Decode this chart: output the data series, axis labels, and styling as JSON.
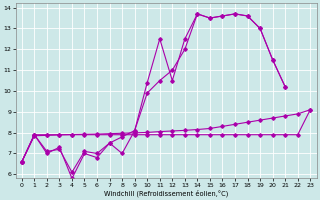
{
  "bg_color": "#cde8e8",
  "line_color": "#aa00aa",
  "xlabel": "Windchill (Refroidissement éolien,°C)",
  "xlim": [
    -0.5,
    23.5
  ],
  "ylim": [
    5.8,
    14.2
  ],
  "xticks": [
    0,
    1,
    2,
    3,
    4,
    5,
    6,
    7,
    8,
    9,
    10,
    11,
    12,
    13,
    14,
    15,
    16,
    17,
    18,
    19,
    20,
    21,
    22,
    23
  ],
  "yticks": [
    6,
    7,
    8,
    9,
    10,
    11,
    12,
    13,
    14
  ],
  "s1x": [
    0,
    1,
    2,
    3,
    4,
    5,
    6,
    7,
    8,
    9,
    10,
    11,
    12,
    13,
    14,
    15,
    16,
    17,
    18,
    19,
    20,
    21
  ],
  "s1y": [
    6.6,
    7.9,
    7.0,
    7.3,
    5.8,
    7.0,
    6.8,
    7.5,
    7.0,
    8.1,
    10.4,
    12.5,
    10.5,
    12.5,
    13.7,
    13.5,
    13.6,
    13.7,
    13.6,
    13.0,
    11.5,
    10.2
  ],
  "s2x": [
    0,
    1,
    2,
    3,
    4,
    5,
    6,
    7,
    8,
    9,
    10,
    11,
    12,
    13,
    14,
    15,
    16,
    17,
    18,
    19,
    20,
    21
  ],
  "s2y": [
    6.6,
    7.9,
    7.1,
    7.2,
    6.1,
    7.1,
    7.0,
    7.5,
    7.8,
    8.1,
    9.9,
    10.5,
    11.0,
    12.0,
    13.7,
    13.5,
    13.6,
    13.7,
    13.6,
    13.0,
    11.5,
    10.2
  ],
  "s3x": [
    0,
    1,
    2,
    3,
    4,
    5,
    6,
    7,
    8,
    9,
    10,
    11,
    12,
    13,
    14,
    15,
    16,
    17,
    18,
    19,
    20,
    21,
    22,
    23
  ],
  "s3y": [
    6.6,
    7.85,
    7.87,
    7.89,
    7.91,
    7.92,
    7.93,
    7.95,
    7.97,
    7.99,
    8.01,
    8.05,
    8.08,
    8.11,
    8.15,
    8.2,
    8.3,
    8.4,
    8.5,
    8.6,
    8.7,
    8.8,
    8.9,
    9.1
  ],
  "s4x": [
    0,
    1,
    2,
    3,
    4,
    5,
    6,
    7,
    8,
    9,
    10,
    11,
    12,
    13,
    14,
    15,
    16,
    17,
    18,
    19,
    20,
    21,
    22,
    23
  ],
  "s4y": [
    6.6,
    7.9,
    7.9,
    7.9,
    7.9,
    7.9,
    7.9,
    7.9,
    7.9,
    7.9,
    7.9,
    7.9,
    7.9,
    7.9,
    7.9,
    7.9,
    7.9,
    7.9,
    7.9,
    7.9,
    7.9,
    7.9,
    7.9,
    9.1
  ]
}
